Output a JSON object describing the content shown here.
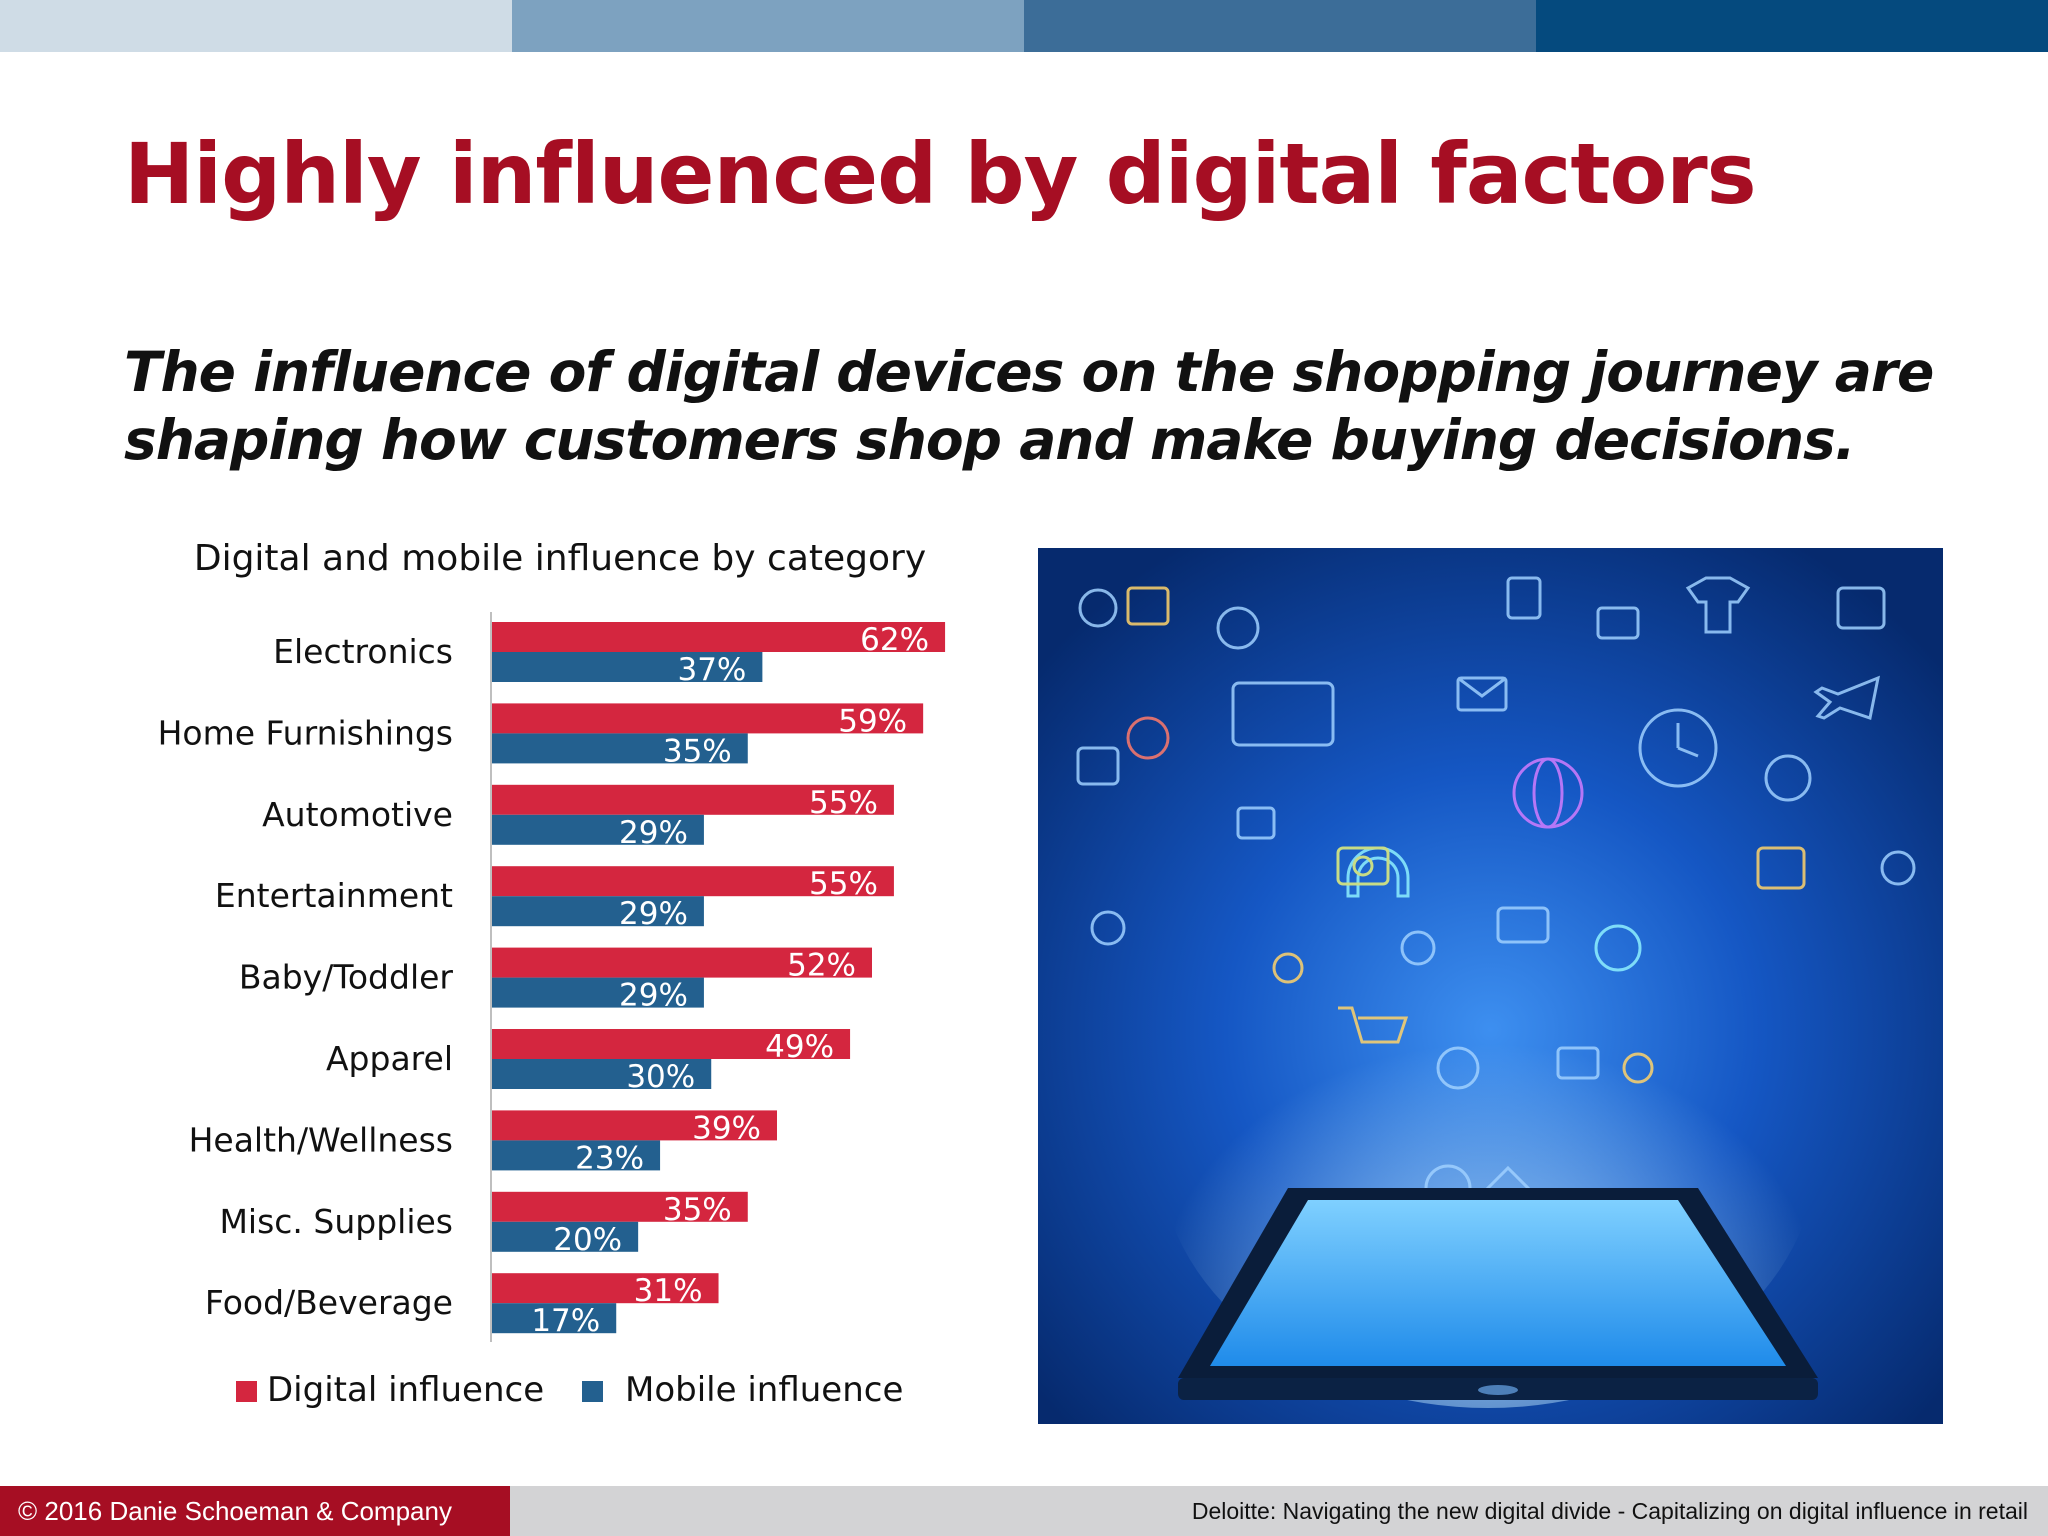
{
  "slide": {
    "title": "Highly influenced by digital factors",
    "subtitle_line1": "The influence of digital devices on the shopping journey are",
    "subtitle_line2": "shaping how customers shop and make buying decisions."
  },
  "colors": {
    "title": "#a60e23",
    "digital": "#d4263f",
    "mobile": "#23608f",
    "top_bar": [
      "#cfdce6",
      "#7da2c0",
      "#3c6d98",
      "#054a7e"
    ],
    "photo_background": "#0b3d8c"
  },
  "chart_data": {
    "type": "bar",
    "orientation": "horizontal",
    "title": "Digital and mobile influence by category",
    "categories": [
      "Electronics",
      "Home Furnishings",
      "Automotive",
      "Entertainment",
      "Baby/Toddler",
      "Apparel",
      "Health/Wellness",
      "Misc. Supplies",
      "Food/Beverage"
    ],
    "series": [
      {
        "name": "Digital influence",
        "values": [
          62,
          59,
          55,
          55,
          52,
          49,
          39,
          35,
          31
        ]
      },
      {
        "name": "Mobile influence",
        "values": [
          37,
          35,
          29,
          29,
          29,
          30,
          23,
          20,
          17
        ]
      }
    ],
    "unit": "%",
    "xlim": [
      0,
      65
    ],
    "legend": "bottom",
    "grid": false,
    "data_labels": "inside-end"
  },
  "illustration": {
    "description_icons": [
      "tablet-icon",
      "clock-icon",
      "globe-icon",
      "tv-icon",
      "shirt-icon",
      "airplane-icon",
      "headphones-icon",
      "camera-icon",
      "cart-icon",
      "envelope-icon"
    ]
  },
  "footer": {
    "left": "© 2016 Danie Schoeman & Company",
    "right": "Deloitte: Navigating the new digital divide - Capitalizing on digital influence in retail"
  }
}
